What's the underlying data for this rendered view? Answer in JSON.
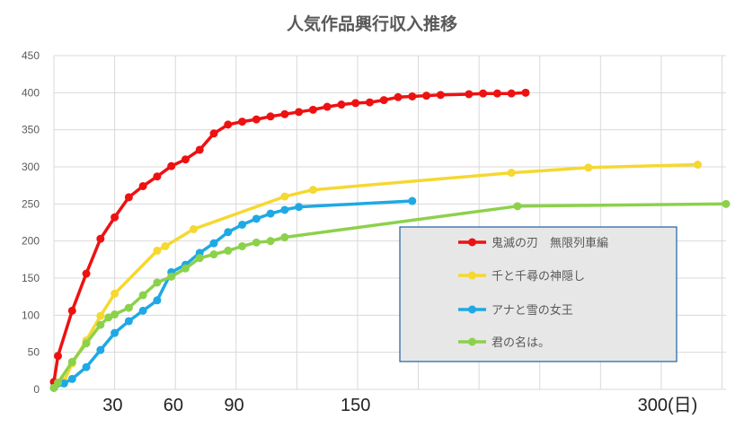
{
  "chart_data": {
    "type": "line",
    "title": "人気作品興行収入推移",
    "xlabel": "",
    "ylabel": "",
    "xlim": [
      1,
      333
    ],
    "ylim": [
      0,
      450
    ],
    "y_ticks": [
      0,
      50,
      100,
      150,
      200,
      250,
      300,
      350,
      400,
      450
    ],
    "x_tick_labels": [
      {
        "value": 30,
        "label": "30"
      },
      {
        "value": 60,
        "label": "60"
      },
      {
        "value": 90,
        "label": "90"
      },
      {
        "value": 150,
        "label": "150"
      },
      {
        "value": 300,
        "label": "300(日)"
      }
    ],
    "x_grid_values": [
      1,
      31,
      61,
      91,
      121,
      151,
      181,
      211,
      241,
      271,
      301,
      331
    ],
    "grid": true,
    "legend_position": "center-right",
    "series": [
      {
        "name": "鬼滅の刃　無限列車編",
        "color": "#ee1111",
        "x": [
          1,
          3,
          10,
          17,
          24,
          31,
          38,
          45,
          52,
          59,
          66,
          73,
          80,
          87,
          94,
          101,
          108,
          115,
          122,
          129,
          136,
          143,
          150,
          157,
          164,
          171,
          178,
          185,
          192,
          206,
          213,
          220,
          227,
          234
        ],
        "y": [
          10,
          45,
          106,
          156,
          203,
          232,
          259,
          274,
          287,
          301,
          310,
          323,
          345,
          357,
          361,
          364,
          368,
          371,
          374,
          377,
          381,
          384,
          386,
          387,
          390,
          394,
          395,
          396,
          397,
          398,
          399,
          399,
          399,
          400
        ]
      },
      {
        "name": "千と千尋の神隠し",
        "color": "#f5d831",
        "x": [
          1,
          6,
          10,
          17,
          24,
          31,
          52,
          56,
          70,
          115,
          129,
          227,
          265,
          319
        ],
        "y": [
          2,
          11,
          35,
          66,
          99,
          129,
          187,
          193,
          216,
          260,
          269,
          292,
          299,
          303
        ]
      },
      {
        "name": "アナと雪の女王",
        "color": "#1fa9e4",
        "x": [
          1,
          6,
          10,
          17,
          24,
          31,
          38,
          45,
          52,
          59,
          66,
          73,
          80,
          87,
          94,
          101,
          108,
          115,
          122,
          178
        ],
        "y": [
          2,
          8,
          14,
          30,
          53,
          76,
          92,
          106,
          120,
          158,
          168,
          184,
          197,
          212,
          222,
          230,
          237,
          242,
          246,
          254
        ]
      },
      {
        "name": "君の名は。",
        "color": "#8cd14b",
        "x": [
          1,
          3,
          10,
          17,
          24,
          28,
          31,
          38,
          45,
          52,
          59,
          66,
          73,
          80,
          87,
          94,
          101,
          108,
          115,
          230,
          333
        ],
        "y": [
          2,
          9,
          37,
          62,
          87,
          97,
          101,
          110,
          127,
          144,
          152,
          163,
          177,
          182,
          187,
          193,
          198,
          200,
          205,
          247,
          250
        ]
      }
    ]
  }
}
